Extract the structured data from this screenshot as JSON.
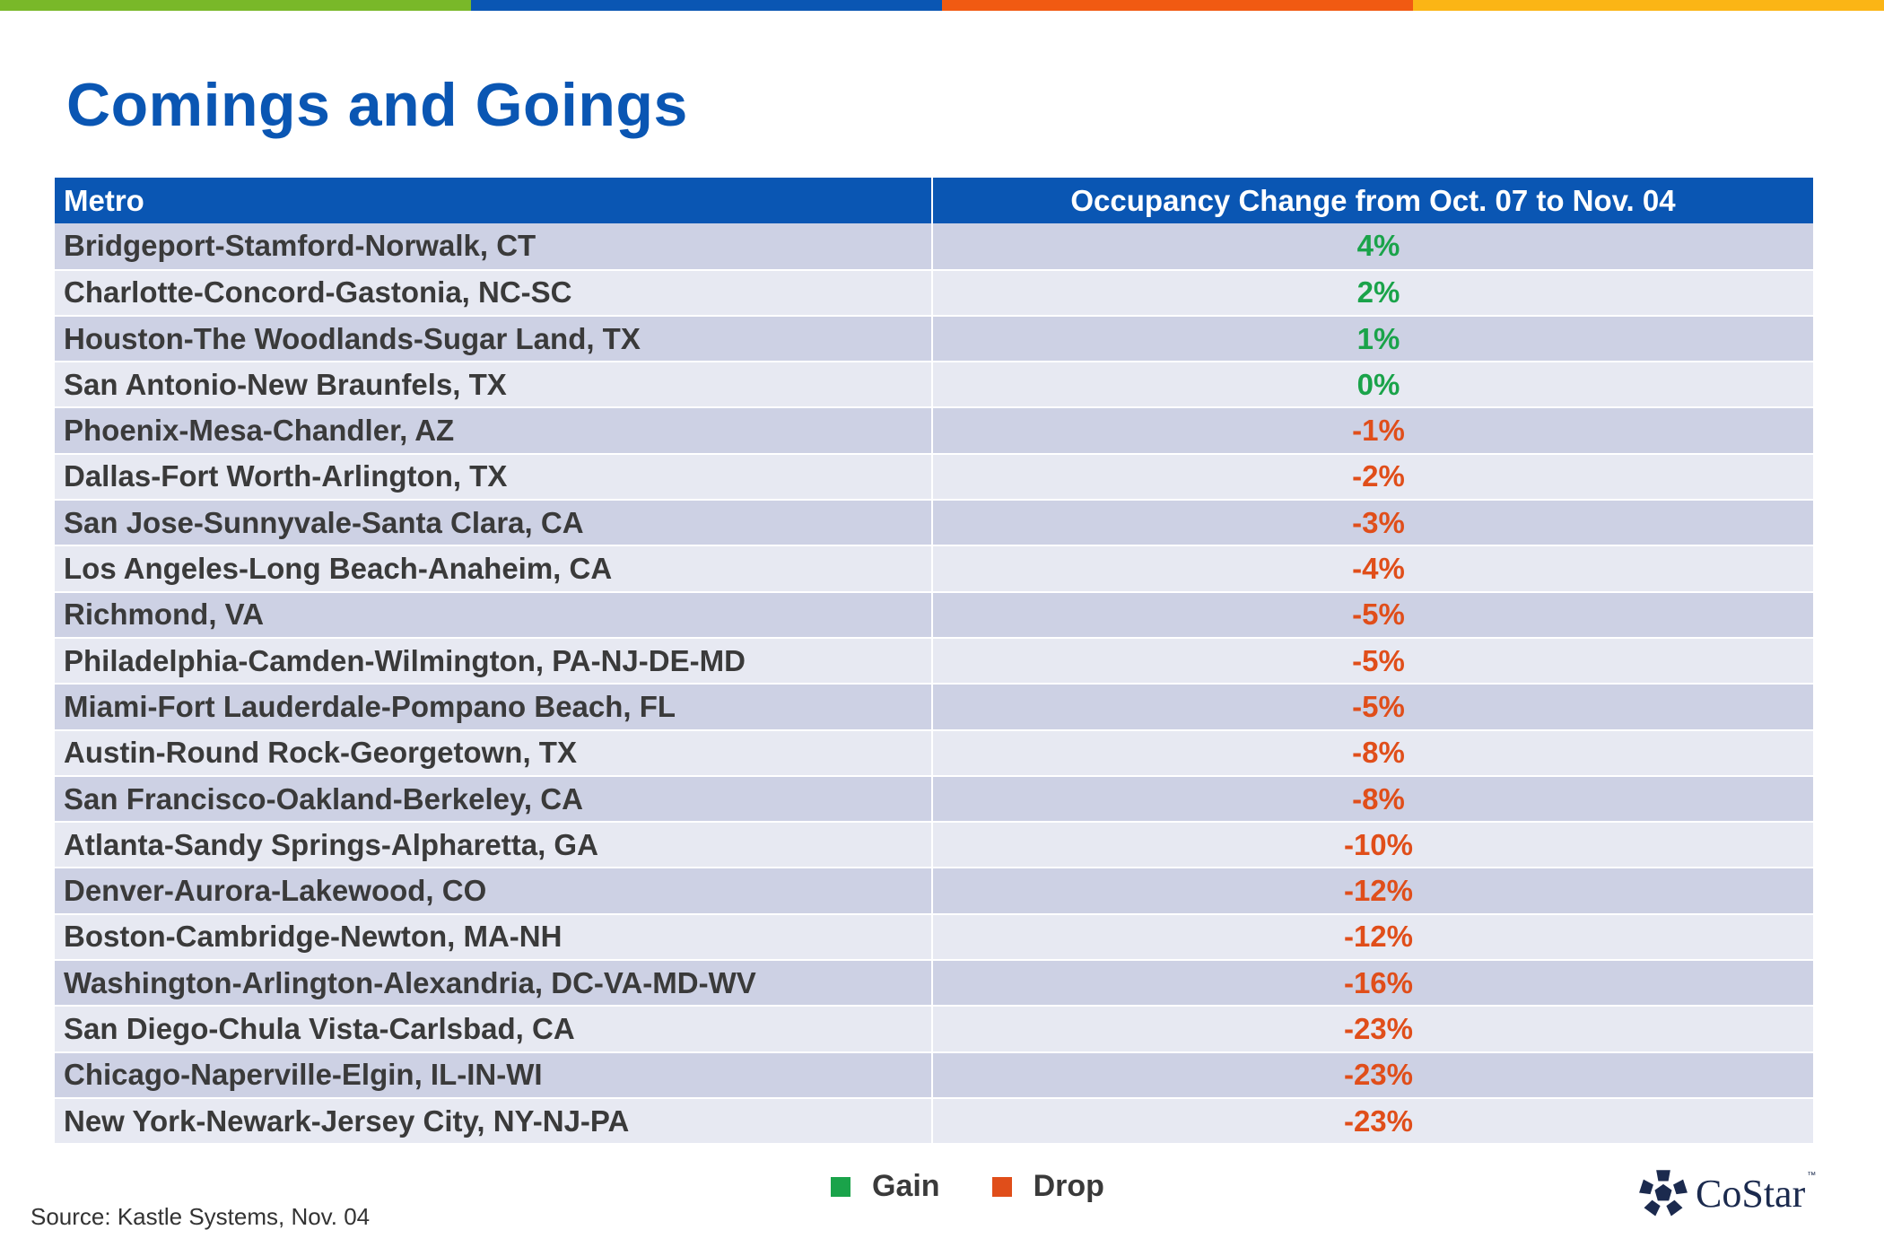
{
  "colors": {
    "title": "#0a56b3",
    "header_bg": "#0a56b3",
    "gain": "#1aa34a",
    "drop": "#e04e1a",
    "row_odd": "#cdd1e4",
    "row_even": "#e7e9f2",
    "top_bar": [
      "#79b829",
      "#0a56b3",
      "#f15a12",
      "#fbb515"
    ]
  },
  "title": "Comings and Goings",
  "table": {
    "headers": [
      "Metro",
      "Occupancy Change from Oct. 07 to Nov. 04"
    ],
    "rows": [
      {
        "metro": "Bridgeport-Stamford-Norwalk, CT",
        "change": "4%",
        "type": "gain"
      },
      {
        "metro": "Charlotte-Concord-Gastonia, NC-SC",
        "change": "2%",
        "type": "gain"
      },
      {
        "metro": "Houston-The Woodlands-Sugar Land, TX",
        "change": "1%",
        "type": "gain"
      },
      {
        "metro": "San Antonio-New Braunfels, TX",
        "change": "0%",
        "type": "gain"
      },
      {
        "metro": "Phoenix-Mesa-Chandler, AZ",
        "change": "-1%",
        "type": "drop"
      },
      {
        "metro": "Dallas-Fort Worth-Arlington, TX",
        "change": "-2%",
        "type": "drop"
      },
      {
        "metro": "San Jose-Sunnyvale-Santa Clara, CA",
        "change": "-3%",
        "type": "drop"
      },
      {
        "metro": "Los Angeles-Long Beach-Anaheim, CA",
        "change": "-4%",
        "type": "drop"
      },
      {
        "metro": "Richmond, VA",
        "change": "-5%",
        "type": "drop"
      },
      {
        "metro": "Philadelphia-Camden-Wilmington, PA-NJ-DE-MD",
        "change": "-5%",
        "type": "drop"
      },
      {
        "metro": "Miami-Fort Lauderdale-Pompano Beach, FL",
        "change": "-5%",
        "type": "drop"
      },
      {
        "metro": "Austin-Round Rock-Georgetown, TX",
        "change": "-8%",
        "type": "drop"
      },
      {
        "metro": "San Francisco-Oakland-Berkeley, CA",
        "change": "-8%",
        "type": "drop"
      },
      {
        "metro": "Atlanta-Sandy Springs-Alpharetta, GA",
        "change": "-10%",
        "type": "drop"
      },
      {
        "metro": "Denver-Aurora-Lakewood, CO",
        "change": "-12%",
        "type": "drop"
      },
      {
        "metro": "Boston-Cambridge-Newton, MA-NH",
        "change": "-12%",
        "type": "drop"
      },
      {
        "metro": "Washington-Arlington-Alexandria, DC-VA-MD-WV",
        "change": "-16%",
        "type": "drop"
      },
      {
        "metro": "San Diego-Chula Vista-Carlsbad, CA",
        "change": "-23%",
        "type": "drop"
      },
      {
        "metro": "Chicago-Naperville-Elgin, IL-IN-WI",
        "change": "-23%",
        "type": "drop"
      },
      {
        "metro": "New York-Newark-Jersey City, NY-NJ-PA",
        "change": "-23%",
        "type": "drop"
      }
    ]
  },
  "legend": [
    {
      "label": "Gain",
      "color": "#1aa34a"
    },
    {
      "label": "Drop",
      "color": "#e04e1a"
    }
  ],
  "source": "Source: Kastle Systems, Nov. 04",
  "brand": {
    "name": "CoStar",
    "tm": "™",
    "icon": "costar-star-logo-icon"
  }
}
